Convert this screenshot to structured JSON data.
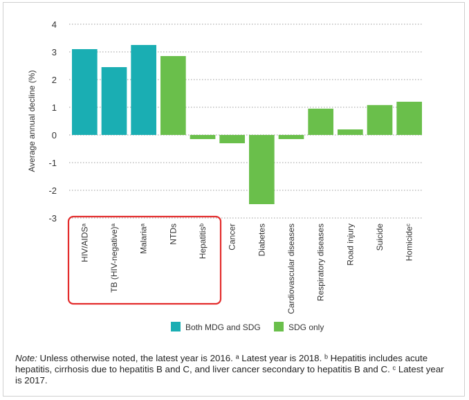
{
  "chart_data": {
    "type": "bar",
    "ylabel": "Average annual decline (%)",
    "ylim": [
      -3,
      4
    ],
    "yticks": [
      4,
      3,
      2,
      1,
      0,
      -1,
      -2,
      -3
    ],
    "grid": true,
    "legend_position": "bottom-center",
    "categories": [
      "HIV/AIDSᵃ",
      "TB (HIV-negative)ᵃ",
      "Malariaᵃ",
      "NTDs",
      "Hepatitisᵇ",
      "Cancer",
      "Diabetes",
      "Cardiovascular diseases",
      "Respiratory diseases",
      "Road injury",
      "Suicide",
      "Homicideᶜ"
    ],
    "values": [
      3.1,
      2.45,
      3.25,
      2.85,
      -0.15,
      -0.3,
      -2.5,
      -0.15,
      0.95,
      0.2,
      1.08,
      1.2
    ],
    "groups": [
      "Both MDG and SDG",
      "Both MDG and SDG",
      "Both MDG and SDG",
      "SDG only",
      "SDG only",
      "SDG only",
      "SDG only",
      "SDG only",
      "SDG only",
      "SDG only",
      "SDG only",
      "SDG only"
    ],
    "series": [
      {
        "name": "Both MDG and SDG",
        "color": "#1aaeb3"
      },
      {
        "name": "SDG only",
        "color": "#6abf4b"
      }
    ],
    "highlight": {
      "from_index": 0,
      "to_index": 4,
      "color": "#e32b2b"
    }
  },
  "note": {
    "prefix": "Note:",
    "text": " Unless otherwise noted, the latest year is 2016. ᵃ Latest year is 2018. ᵇ Hepatitis includes acute hepatitis, cirrhosis due to hepatitis B and C, and liver cancer secondary to hepatitis B and C. ᶜ Latest year is 2017."
  }
}
